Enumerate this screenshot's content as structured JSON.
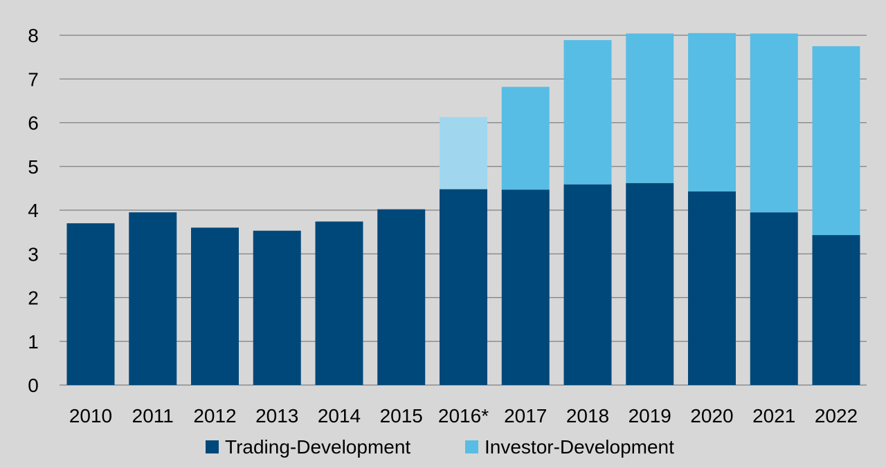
{
  "chart_data": {
    "type": "bar",
    "stacked": true,
    "categories": [
      "2010",
      "2011",
      "2012",
      "2013",
      "2014",
      "2015",
      "2016*",
      "2017",
      "2018",
      "2019",
      "2020",
      "2021",
      "2022"
    ],
    "series": [
      {
        "name": "Trading-Development",
        "color": "#004879",
        "values": [
          3.7,
          3.95,
          3.6,
          3.53,
          3.74,
          4.02,
          4.48,
          4.47,
          4.59,
          4.62,
          4.43,
          3.95,
          3.43
        ]
      },
      {
        "name": "Investor-Development",
        "color": "#58bde4",
        "values": [
          0,
          0,
          0,
          0,
          0,
          0,
          1.65,
          2.35,
          3.3,
          3.42,
          3.62,
          4.09,
          4.32
        ]
      }
    ],
    "special_colors": {
      "2016*": {
        "Investor-Development": "#a0d7ef"
      }
    },
    "yticks": [
      "0",
      "1",
      "2",
      "3",
      "4",
      "5",
      "6",
      "7",
      "8"
    ],
    "ylim": [
      0,
      8
    ],
    "grid": true,
    "legend_position": "bottom",
    "background": "#d8d7d8",
    "gridline_color": "#7f7f7f"
  }
}
